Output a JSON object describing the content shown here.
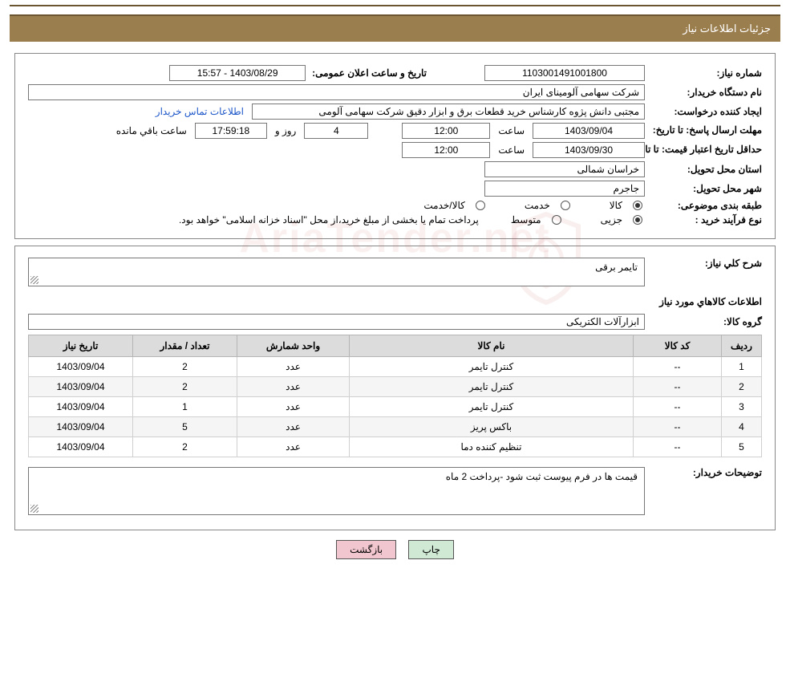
{
  "header": {
    "title": "جزئیات اطلاعات نیاز"
  },
  "form": {
    "need_number_label": "شماره نیاز:",
    "need_number": "1103001491001800",
    "announce_datetime_label": "تاریخ و ساعت اعلان عمومی:",
    "announce_datetime": "1403/08/29 - 15:57",
    "buyer_label": "نام دستگاه خریدار:",
    "buyer": "شرکت سهامی آلومینای ایران",
    "requestor_label": "ایجاد کننده درخواست:",
    "requestor": "مجتبی دانش پژوه کارشناس خرید قطعات برق و ابزار دقیق شرکت سهامی آلومی",
    "contact_link": "اطلاعات تماس خریدار",
    "deadline_label": "مهلت ارسال پاسخ: تا تاریخ:",
    "deadline_date": "1403/09/04",
    "time_label": "ساعت",
    "deadline_time": "12:00",
    "days_label": "روز و",
    "days_remaining": "4",
    "remaining_time": "17:59:18",
    "remaining_suffix": "ساعت باقي مانده",
    "validity_label": "حداقل تاریخ اعتبار قیمت: تا تاریخ:",
    "validity_date": "1403/09/30",
    "validity_time": "12:00",
    "province_label": "استان محل تحویل:",
    "province": "خراسان شمالی",
    "city_label": "شهر محل تحویل:",
    "city": "جاجرم",
    "category_label": "طبقه بندی موضوعی:",
    "cat_goods": "کالا",
    "cat_service": "خدمت",
    "cat_goods_service": "کالا/خدمت",
    "purchase_type_label": "نوع فرآیند خرید :",
    "pt_partial": "جزیی",
    "pt_medium": "متوسط",
    "payment_note": "پرداخت تمام یا بخشی از مبلغ خرید،از محل \"اسناد خزانه اسلامی\" خواهد بود."
  },
  "sec2": {
    "overall_label": "شرح كلي نياز:",
    "overall_value": "تایمر برقی",
    "goods_section_title": "اطلاعات كالاهاي مورد نياز",
    "group_label": "گروه کالا:",
    "group_value": "ابزارآلات الکتریکی",
    "columns": {
      "row": "ردیف",
      "code": "کد کالا",
      "name": "نام کالا",
      "unit": "واحد شمارش",
      "qty": "تعداد / مقدار",
      "date": "تاریخ نیاز"
    },
    "rows": [
      {
        "n": "1",
        "code": "--",
        "name": "کنترل تایمر",
        "unit": "عدد",
        "qty": "2",
        "date": "1403/09/04"
      },
      {
        "n": "2",
        "code": "--",
        "name": "کنترل تایمر",
        "unit": "عدد",
        "qty": "2",
        "date": "1403/09/04"
      },
      {
        "n": "3",
        "code": "--",
        "name": "کنترل تایمر",
        "unit": "عدد",
        "qty": "1",
        "date": "1403/09/04"
      },
      {
        "n": "4",
        "code": "--",
        "name": "باکس پریز",
        "unit": "عدد",
        "qty": "5",
        "date": "1403/09/04"
      },
      {
        "n": "5",
        "code": "--",
        "name": "تنظیم کننده دما",
        "unit": "عدد",
        "qty": "2",
        "date": "1403/09/04"
      }
    ],
    "buyer_notes_label": "توضیحات خریدار:",
    "buyer_notes": "قیمت ها در فرم پیوست ثبت شود -پرداخت 2 ماه"
  },
  "buttons": {
    "print": "چاپ",
    "back": "بازگشت"
  },
  "colors": {
    "header_bg": "#9b7e4e",
    "header_border": "#6b5430",
    "th_bg": "#dcdcdc",
    "btn_print_bg": "#cfe9d4",
    "btn_back_bg": "#f1c6cf",
    "link": "#1c56c9"
  }
}
